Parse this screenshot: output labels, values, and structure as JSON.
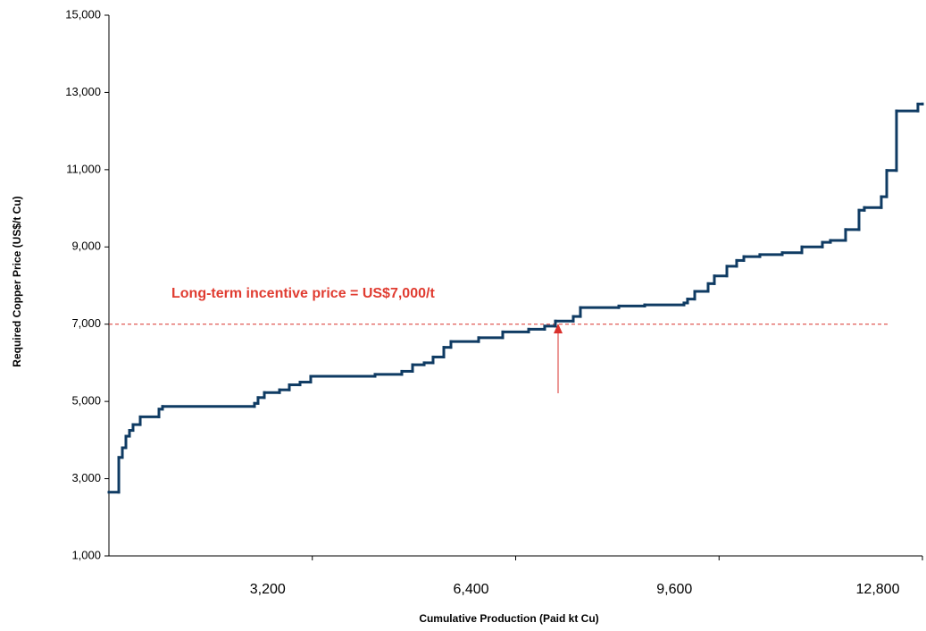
{
  "chart_data": {
    "type": "step-line",
    "x_label": "Cumulative Production (Paid kt Cu)",
    "y_label": "Required Copper Price  (US$/t Cu)",
    "xlim": [
      0,
      12800
    ],
    "ylim": [
      1000,
      15000
    ],
    "xticks": [
      {
        "value": 3200,
        "label": "3,200"
      },
      {
        "value": 6400,
        "label": "6,400"
      },
      {
        "value": 9600,
        "label": "9,600"
      },
      {
        "value": 12800,
        "label": "12,800"
      }
    ],
    "yticks": [
      {
        "value": 1000,
        "label": "1,000"
      },
      {
        "value": 3000,
        "label": "3,000"
      },
      {
        "value": 5000,
        "label": "5,000"
      },
      {
        "value": 7000,
        "label": "7,000"
      },
      {
        "value": 9000,
        "label": "9,000"
      },
      {
        "value": 11000,
        "label": "11,000"
      },
      {
        "value": 13000,
        "label": "13,000"
      },
      {
        "value": 15000,
        "label": "15,000"
      }
    ],
    "series": [
      {
        "color": "#0f3b63",
        "x": [
          0,
          155,
          211,
          267,
          323,
          379,
          492,
          787,
          843,
          2290,
          2346,
          2445,
          2684,
          2838,
          3007,
          3175,
          4187,
          4608,
          4777,
          4960,
          5100,
          5269,
          5381,
          5817,
          6196,
          6604,
          6856,
          7025,
          7306,
          7418,
          8023,
          8430,
          9048,
          9104,
          9217,
          9428,
          9526,
          9723,
          9877,
          9990,
          10242,
          10594,
          10903,
          11226,
          11352,
          11591,
          11802,
          11886,
          12153,
          12238,
          12392,
          12729,
          12800
        ],
        "values": [
          2650,
          3550,
          3800,
          4100,
          4250,
          4400,
          4600,
          4800,
          4870,
          4950,
          5100,
          5230,
          5300,
          5430,
          5500,
          5650,
          5700,
          5780,
          5950,
          6000,
          6150,
          6400,
          6550,
          6650,
          6800,
          6870,
          6950,
          7080,
          7200,
          7430,
          7470,
          7500,
          7550,
          7650,
          7850,
          8050,
          8250,
          8500,
          8650,
          8750,
          8800,
          8850,
          9000,
          9120,
          9170,
          9450,
          9950,
          10020,
          10300,
          10980,
          12520,
          12700,
          12700
        ]
      }
    ],
    "reference_line": {
      "value": 7000,
      "label": "Long-term incentive price = US$7,000/t",
      "color": "#d9302c",
      "x_end": 12294
    }
  }
}
